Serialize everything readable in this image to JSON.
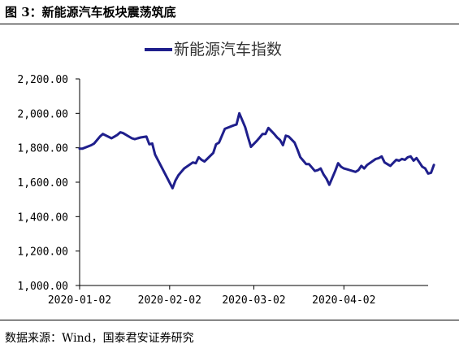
{
  "figure": {
    "title": "图 3：新能源汽车板块震荡筑底",
    "source": "数据来源：Wind，国泰君安证券研究"
  },
  "chart_data": {
    "type": "line",
    "title": "",
    "xlabel": "",
    "ylabel": "",
    "ylim": [
      1000,
      2200
    ],
    "yticks": [
      1000,
      1200,
      1400,
      1600,
      1800,
      2000,
      2200
    ],
    "ytick_labels": [
      "1,000.00",
      "1,200.00",
      "1,400.00",
      "1,600.00",
      "1,800.00",
      "2,000.00",
      "2,200.00"
    ],
    "xtick_labels": [
      "2020-01-02",
      "2020-02-02",
      "2020-03-02",
      "2020-04-02"
    ],
    "xtick_dates": [
      "2020-01-02",
      "2020-02-02",
      "2020-03-02",
      "2020-04-02"
    ],
    "x_range": [
      "2020-01-02",
      "2020-05-01"
    ],
    "legend_position": "top-center",
    "grid": false,
    "series": [
      {
        "name": "新能源汽车指数",
        "color": "#1f1f8c",
        "points": [
          [
            "2020-01-02",
            1795
          ],
          [
            "2020-01-03",
            1795
          ],
          [
            "2020-01-06",
            1815
          ],
          [
            "2020-01-07",
            1825
          ],
          [
            "2020-01-08",
            1845
          ],
          [
            "2020-01-09",
            1865
          ],
          [
            "2020-01-10",
            1880
          ],
          [
            "2020-01-13",
            1855
          ],
          [
            "2020-01-14",
            1865
          ],
          [
            "2020-01-15",
            1875
          ],
          [
            "2020-01-16",
            1890
          ],
          [
            "2020-01-17",
            1885
          ],
          [
            "2020-01-20",
            1855
          ],
          [
            "2020-01-21",
            1850
          ],
          [
            "2020-01-22",
            1855
          ],
          [
            "2020-01-23",
            1860
          ],
          [
            "2020-01-25",
            1865
          ],
          [
            "2020-01-26",
            1820
          ],
          [
            "2020-01-27",
            1825
          ],
          [
            "2020-01-28",
            1760
          ],
          [
            "2020-02-03",
            1565
          ],
          [
            "2020-02-04",
            1610
          ],
          [
            "2020-02-05",
            1640
          ],
          [
            "2020-02-06",
            1660
          ],
          [
            "2020-02-07",
            1680
          ],
          [
            "2020-02-10",
            1715
          ],
          [
            "2020-02-11",
            1710
          ],
          [
            "2020-02-12",
            1745
          ],
          [
            "2020-02-13",
            1730
          ],
          [
            "2020-02-14",
            1720
          ],
          [
            "2020-02-17",
            1770
          ],
          [
            "2020-02-18",
            1820
          ],
          [
            "2020-02-19",
            1830
          ],
          [
            "2020-02-20",
            1870
          ],
          [
            "2020-02-21",
            1910
          ],
          [
            "2020-02-24",
            1930
          ],
          [
            "2020-02-25",
            1935
          ],
          [
            "2020-02-26",
            2000
          ],
          [
            "2020-02-27",
            1960
          ],
          [
            "2020-02-28",
            1920
          ],
          [
            "2020-02-29",
            1860
          ],
          [
            "2020-03-01",
            1805
          ],
          [
            "2020-03-03",
            1840
          ],
          [
            "2020-03-04",
            1860
          ],
          [
            "2020-03-05",
            1880
          ],
          [
            "2020-03-06",
            1880
          ],
          [
            "2020-03-07",
            1915
          ],
          [
            "2020-03-09",
            1880
          ],
          [
            "2020-03-10",
            1860
          ],
          [
            "2020-03-11",
            1845
          ],
          [
            "2020-03-12",
            1815
          ],
          [
            "2020-03-13",
            1870
          ],
          [
            "2020-03-14",
            1865
          ],
          [
            "2020-03-16",
            1830
          ],
          [
            "2020-03-17",
            1790
          ],
          [
            "2020-03-18",
            1745
          ],
          [
            "2020-03-19",
            1725
          ],
          [
            "2020-03-20",
            1705
          ],
          [
            "2020-03-21",
            1705
          ],
          [
            "2020-03-23",
            1665
          ],
          [
            "2020-03-24",
            1670
          ],
          [
            "2020-03-25",
            1680
          ],
          [
            "2020-03-26",
            1645
          ],
          [
            "2020-03-27",
            1620
          ],
          [
            "2020-03-28",
            1585
          ],
          [
            "2020-03-30",
            1665
          ],
          [
            "2020-03-31",
            1710
          ],
          [
            "2020-04-01",
            1690
          ],
          [
            "2020-04-02",
            1680
          ],
          [
            "2020-04-03",
            1675
          ],
          [
            "2020-04-06",
            1660
          ],
          [
            "2020-04-07",
            1670
          ],
          [
            "2020-04-08",
            1695
          ],
          [
            "2020-04-09",
            1680
          ],
          [
            "2020-04-10",
            1700
          ],
          [
            "2020-04-13",
            1735
          ],
          [
            "2020-04-14",
            1740
          ],
          [
            "2020-04-15",
            1750
          ],
          [
            "2020-04-16",
            1715
          ],
          [
            "2020-04-17",
            1705
          ],
          [
            "2020-04-18",
            1695
          ],
          [
            "2020-04-20",
            1730
          ],
          [
            "2020-04-21",
            1725
          ],
          [
            "2020-04-22",
            1735
          ],
          [
            "2020-04-23",
            1730
          ],
          [
            "2020-04-24",
            1745
          ],
          [
            "2020-04-25",
            1750
          ],
          [
            "2020-04-26",
            1725
          ],
          [
            "2020-04-27",
            1740
          ],
          [
            "2020-04-28",
            1715
          ],
          [
            "2020-04-29",
            1690
          ],
          [
            "2020-04-30",
            1680
          ],
          [
            "2020-05-01",
            1650
          ],
          [
            "2020-05-02",
            1655
          ],
          [
            "2020-05-03",
            1700
          ]
        ]
      }
    ]
  }
}
